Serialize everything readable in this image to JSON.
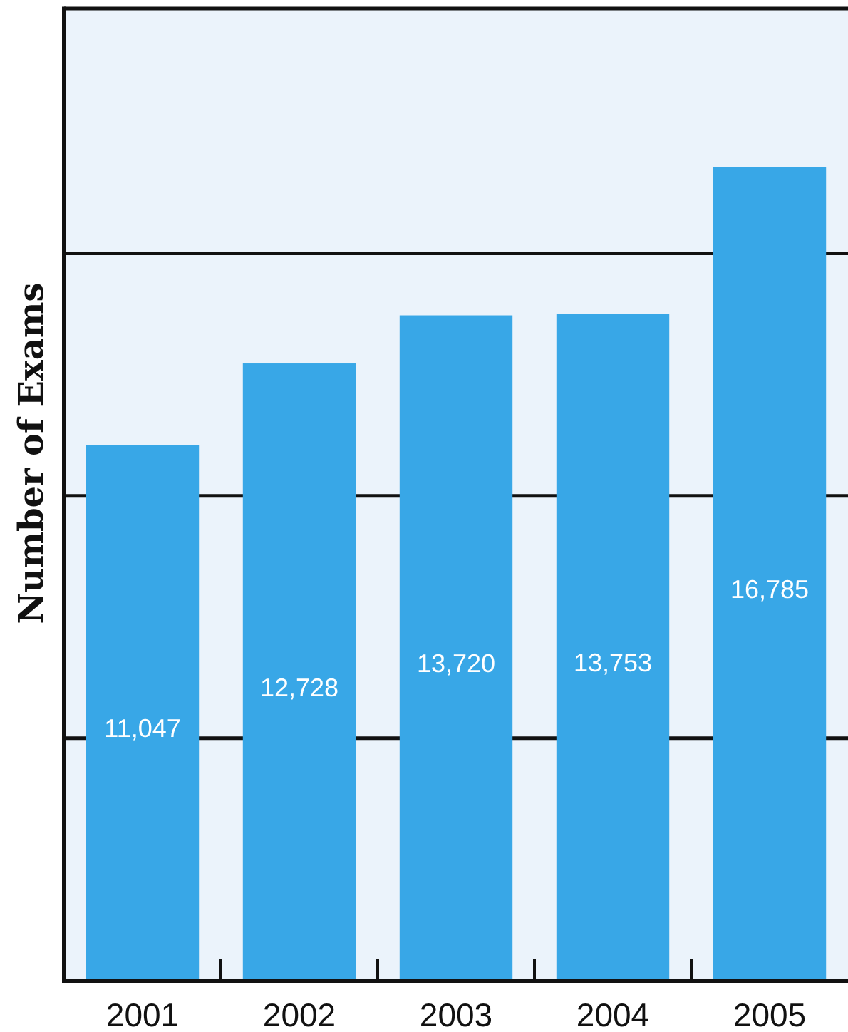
{
  "chart_data": {
    "type": "bar",
    "ylabel": "Number of Exams",
    "categories": [
      "2001",
      "2002",
      "2003",
      "2004",
      "2005"
    ],
    "values": [
      11047,
      12728,
      13720,
      13753,
      16785
    ],
    "color": "#38a7e7",
    "value_labels": [
      "11,047",
      "12,728",
      "13,720",
      "13,753",
      "16,785"
    ],
    "grid": "y",
    "tick_labels": "x"
  }
}
